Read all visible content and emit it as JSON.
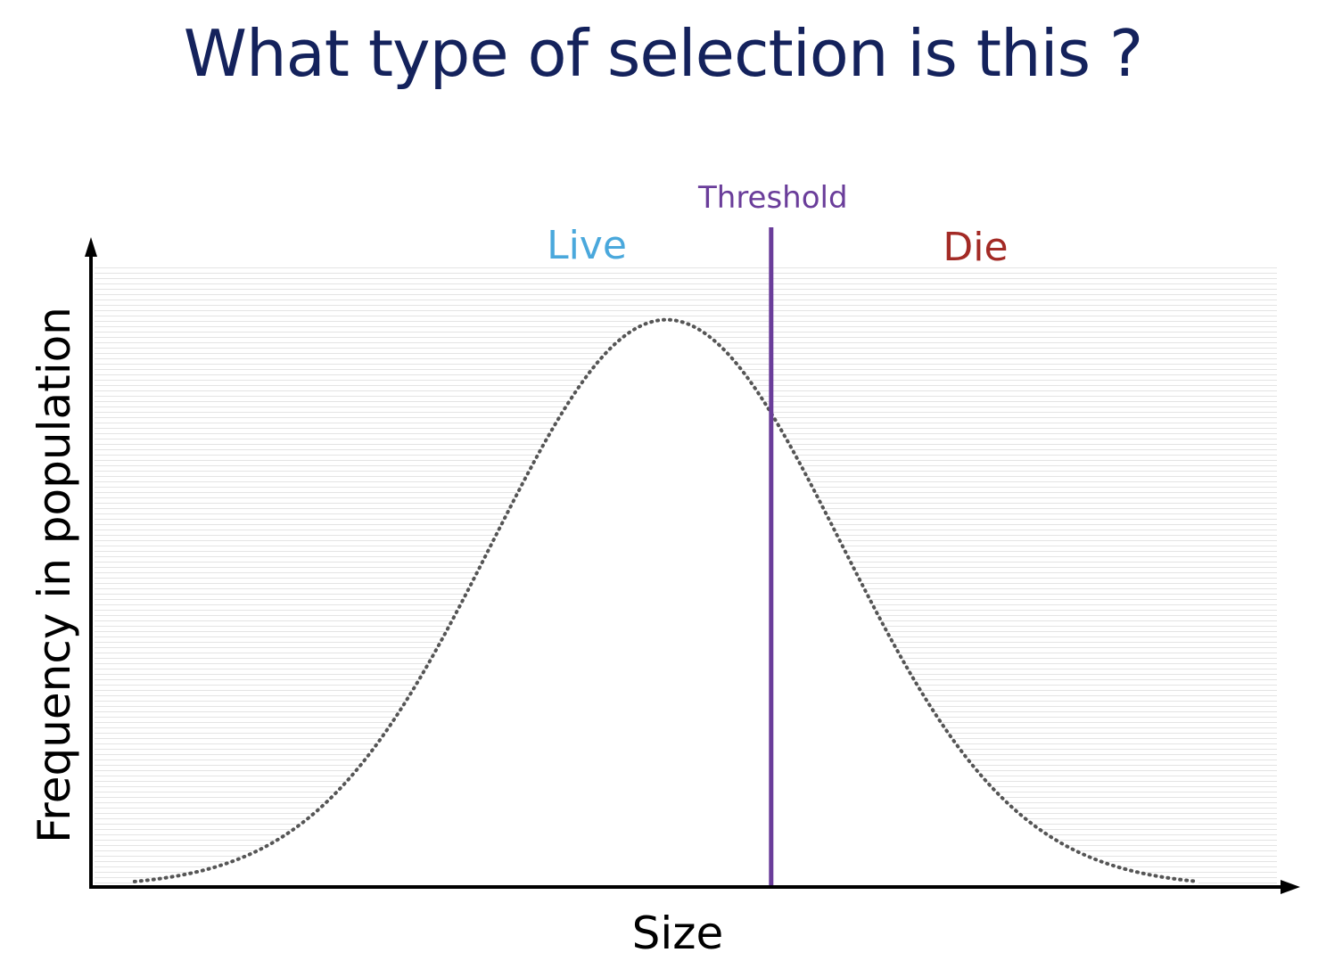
{
  "slide": {
    "title": "What type of selection is this ?"
  },
  "colors": {
    "title": "#14225c",
    "axis": "#000000",
    "curve": "#555555",
    "threshold": "#6a3d9a",
    "live": "#4aa8dc",
    "die": "#a32a25",
    "stripes": "#e4e4e4"
  },
  "chart_data": {
    "type": "line",
    "title": "",
    "xlabel": "Size",
    "ylabel": "Frequency in population",
    "grid": false,
    "series": [
      {
        "style": "dotted",
        "distribution": "normal",
        "mean": 0,
        "sd": 1,
        "x": [
          -3,
          -2.5,
          -2,
          -1.5,
          -1,
          -0.5,
          0,
          0.5,
          1,
          1.5,
          2,
          2.5,
          3
        ],
        "y": [
          0.011,
          0.044,
          0.135,
          0.325,
          0.607,
          0.882,
          1,
          0.882,
          0.607,
          0.325,
          0.135,
          0.044,
          0.011
        ]
      }
    ],
    "xlim": [
      -3.3,
      3.5
    ],
    "ylim": [
      0,
      1.1
    ],
    "threshold": {
      "x": 0.6,
      "label": "Threshold"
    },
    "annotations": [
      {
        "text": "Live",
        "region": "left of threshold"
      },
      {
        "text": "Die",
        "region": "right of threshold"
      }
    ]
  }
}
